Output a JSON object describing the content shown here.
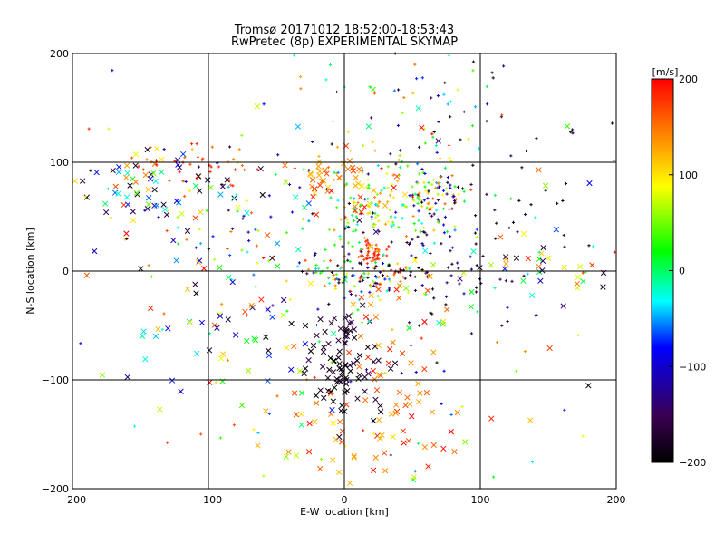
{
  "chart_data": {
    "type": "scatter",
    "title": "Tromsø 20171012 18:52:00-18:53:43",
    "subtitle": "RwPretec (8p) EXPERIMENTAL SKYMAP",
    "xlabel": "E-W location [km]",
    "ylabel": "N-S location [km]",
    "xlim": [
      -200,
      200
    ],
    "ylim": [
      -200,
      200
    ],
    "xticks": [
      -200,
      -100,
      0,
      100,
      200
    ],
    "yticks": [
      -200,
      -100,
      0,
      100,
      200
    ],
    "grid": true,
    "colorbar": {
      "label": "[m/s]",
      "range": [
        -200,
        200
      ],
      "ticks": [
        200,
        100,
        0,
        -100,
        -200
      ],
      "colors": [
        "#000000",
        "#3a0050",
        "#0000ff",
        "#00ffff",
        "#00ff00",
        "#ffff00",
        "#ff0000"
      ]
    },
    "markers": [
      "x",
      "+"
    ],
    "clusters": [
      {
        "x": 65,
        "y": 75,
        "sx": 12,
        "sy": 10,
        "n": 70,
        "vmin": -200,
        "vmax": 200,
        "marker": "+"
      },
      {
        "x": 20,
        "y": 15,
        "sx": 6,
        "sy": 6,
        "n": 45,
        "vmin": 150,
        "vmax": 200,
        "marker": "+"
      },
      {
        "x": 15,
        "y": -5,
        "sx": 20,
        "sy": 10,
        "n": 110,
        "vmin": -200,
        "vmax": 200,
        "marker": "+"
      },
      {
        "x": 25,
        "y": 55,
        "sx": 22,
        "sy": 18,
        "n": 110,
        "vmin": -50,
        "vmax": 150,
        "marker": "+"
      },
      {
        "x": 0,
        "y": -100,
        "sx": 12,
        "sy": 20,
        "n": 55,
        "vmin": -200,
        "vmax": -170,
        "marker": "x"
      },
      {
        "x": -10,
        "y": -60,
        "sx": 15,
        "sy": 15,
        "n": 35,
        "vmin": -200,
        "vmax": -150,
        "marker": "x"
      },
      {
        "x": 30,
        "y": -100,
        "sx": 30,
        "sy": 40,
        "n": 55,
        "vmin": 120,
        "vmax": 200,
        "marker": "x"
      },
      {
        "x": -140,
        "y": 80,
        "sx": 30,
        "sy": 15,
        "n": 65,
        "vmin": -200,
        "vmax": 200,
        "marker": "x"
      },
      {
        "x": -120,
        "y": 100,
        "sx": 25,
        "sy": 10,
        "n": 35,
        "vmin": 140,
        "vmax": 200,
        "marker": "+"
      },
      {
        "x": 70,
        "y": 10,
        "sx": 25,
        "sy": 30,
        "n": 70,
        "vmin": -200,
        "vmax": -100,
        "marker": "+"
      },
      {
        "x": 120,
        "y": 70,
        "sx": 40,
        "sy": 50,
        "n": 45,
        "vmin": -200,
        "vmax": -150,
        "marker": "+"
      },
      {
        "x": -40,
        "y": 50,
        "sx": 60,
        "sy": 40,
        "n": 90,
        "vmin": -200,
        "vmax": 200,
        "marker": "+"
      },
      {
        "x": 0,
        "y": 80,
        "sx": 20,
        "sy": 15,
        "n": 45,
        "vmin": 100,
        "vmax": 200,
        "marker": "x"
      },
      {
        "x": -60,
        "y": -60,
        "sx": 50,
        "sy": 40,
        "n": 60,
        "vmin": -200,
        "vmax": 200,
        "marker": "x"
      },
      {
        "x": 130,
        "y": 5,
        "sx": 30,
        "sy": 15,
        "n": 35,
        "vmin": -200,
        "vmax": 200,
        "marker": "x"
      },
      {
        "x": 0,
        "y": 0,
        "sx": 110,
        "sy": 110,
        "n": 170,
        "vmin": -200,
        "vmax": 200,
        "marker": "+"
      },
      {
        "x": 0,
        "y": 0,
        "sx": 110,
        "sy": 110,
        "n": 80,
        "vmin": -200,
        "vmax": 200,
        "marker": "x"
      },
      {
        "x": 60,
        "y": 150,
        "sx": 35,
        "sy": 30,
        "n": 45,
        "vmin": -200,
        "vmax": 200,
        "marker": "+"
      },
      {
        "x": 10,
        "y": -160,
        "sx": 40,
        "sy": 25,
        "n": 35,
        "vmin": 100,
        "vmax": 200,
        "marker": "x"
      }
    ]
  }
}
